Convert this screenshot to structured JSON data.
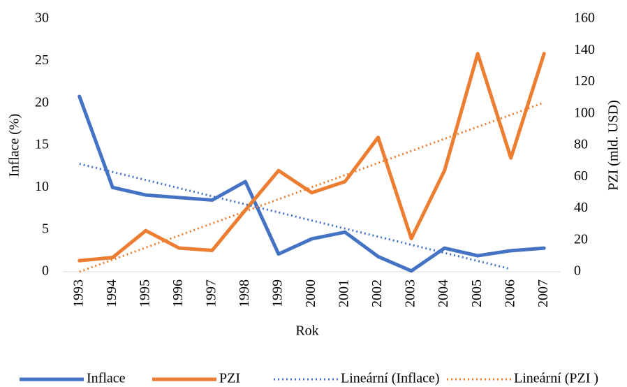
{
  "chart_data": {
    "type": "line",
    "x_label": "Rok",
    "y_label": "Inflace (%)",
    "y2_label": "PZI (mld. USD)",
    "categories": [
      "1993",
      "1994",
      "1995",
      "1996",
      "1997",
      "1998",
      "1999",
      "2000",
      "2001",
      "2002",
      "2003",
      "2004",
      "2005",
      "2006",
      "2007"
    ],
    "ylim": [
      0,
      30
    ],
    "yticks": [
      0,
      5,
      10,
      15,
      20,
      25,
      30
    ],
    "y2lim": [
      0,
      160
    ],
    "y2ticks": [
      0,
      20,
      40,
      60,
      80,
      100,
      120,
      140,
      160
    ],
    "grid": false,
    "legend": "bottom",
    "series": [
      {
        "name": "Inflace",
        "color": "#4472c4",
        "line_style": "solid",
        "values": [
          20.8,
          10.0,
          9.1,
          8.8,
          8.5,
          10.7,
          2.1,
          3.9,
          4.7,
          1.8,
          0.1,
          2.8,
          1.9,
          2.5,
          2.8
        ]
      },
      {
        "name": "PZI",
        "color": "#ed7d31",
        "line_style": "solid",
        "axis": "y2",
        "values": [
          7,
          9,
          26,
          15,
          13.5,
          39,
          64,
          50,
          57,
          85,
          21,
          64,
          138,
          72,
          138
        ]
      },
      {
        "name": "Lineární (Inflace)",
        "color": "#4472c4",
        "line_style": "dotted",
        "values": [
          12.8,
          11.84,
          10.88,
          9.92,
          8.96,
          8.0,
          7.04,
          6.08,
          5.12,
          4.16,
          3.2,
          2.24,
          1.28,
          0.32,
          null
        ]
      },
      {
        "name": "Lineární (PZI )",
        "color": "#ed7d31",
        "line_style": "dotted",
        "axis": "y2",
        "values": [
          0,
          7.6,
          15.3,
          22.9,
          30.6,
          38.2,
          45.9,
          53.5,
          61.1,
          68.8,
          76.4,
          84.1,
          91.7,
          99.3,
          107
        ]
      }
    ]
  }
}
